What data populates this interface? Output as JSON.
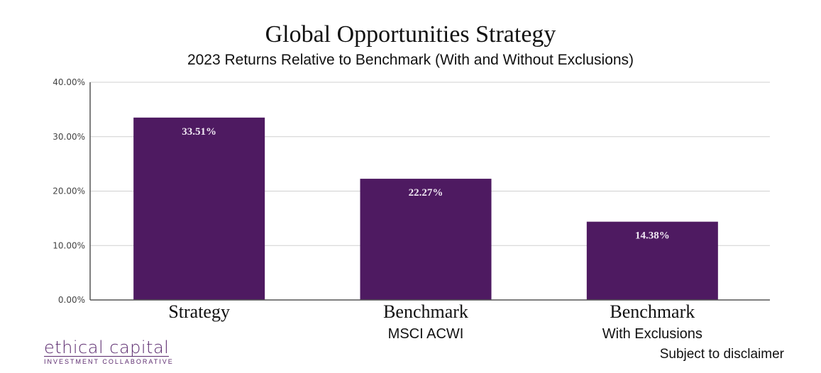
{
  "chart_data": {
    "type": "bar",
    "title": "Global Opportunities Strategy",
    "subtitle": "2023 Returns Relative to Benchmark (With and Without Exclusions)",
    "categories": [
      {
        "label": "Strategy",
        "sublabel": ""
      },
      {
        "label": "Benchmark",
        "sublabel": "MSCI ACWI"
      },
      {
        "label": "Benchmark",
        "sublabel": "With Exclusions"
      }
    ],
    "values": [
      33.51,
      22.27,
      14.38
    ],
    "data_labels": [
      "33.51%",
      "22.27%",
      "14.38%"
    ],
    "ylim": [
      0,
      40
    ],
    "yticks": [
      "0.00%",
      "10.00%",
      "20.00%",
      "30.00%",
      "40.00%"
    ],
    "grid": true,
    "bar_color": "#4e1a61"
  },
  "footer": {
    "logo_main": "ethical capital",
    "logo_sub": "INVESTMENT COLLABORATIVE",
    "disclaimer": "Subject to disclaimer"
  }
}
